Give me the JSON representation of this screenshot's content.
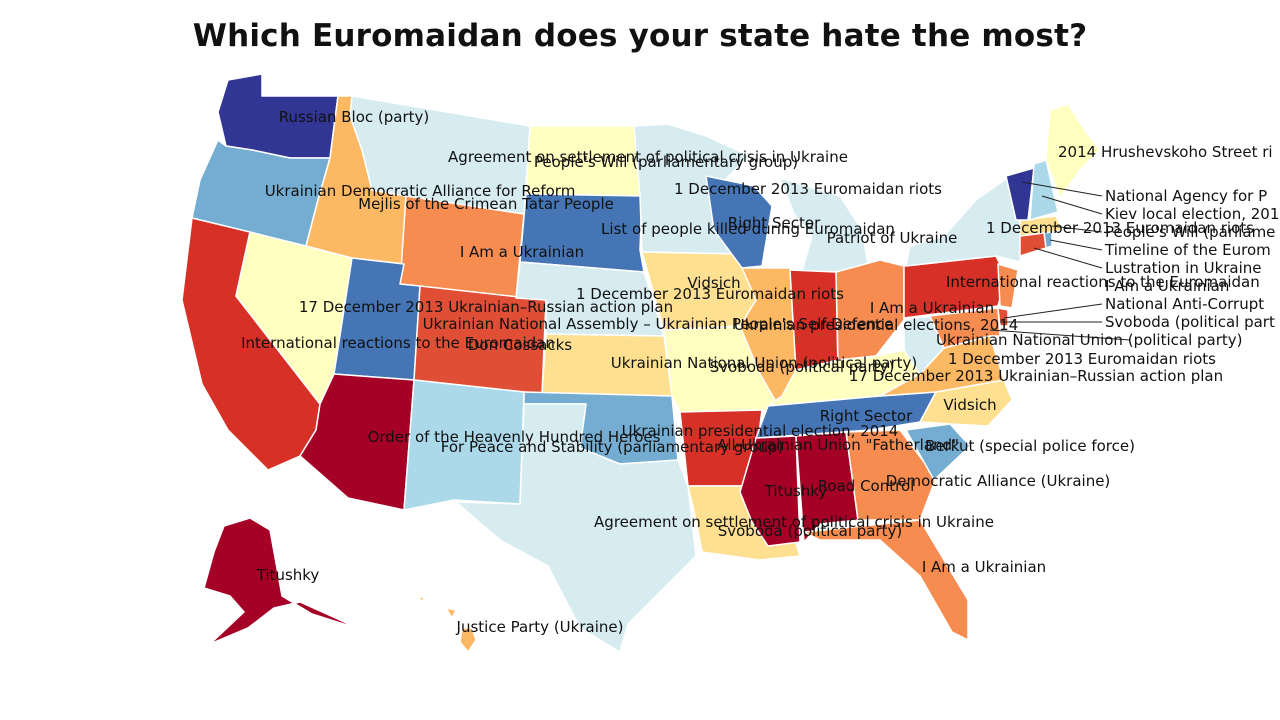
{
  "title": "Which Euromaidan does your state hate the most?",
  "colors": {
    "dark_red": "#a50026",
    "red": "#d73027",
    "orange_red": "#e04e35",
    "orange": "#f68c4f",
    "light_orange": "#fdb863",
    "pale_yellow": "#fee090",
    "cream": "#ffffbf",
    "pale_blue": "#d6ecf1",
    "light_blue": "#abd9e9",
    "blue": "#74add1",
    "mid_blue": "#4575b4",
    "dark_blue": "#313695"
  },
  "labels": {
    "wa": "Russian Bloc (party)",
    "mt": "Agreement on settlement of political crisis in Ukraine",
    "nd": "People's Will (parliamentary group)",
    "me": "2014 Hrushevskoho Street ri",
    "ne_a": "National Agency for P",
    "ne_b": "Kiev local election, 201",
    "ne_c": "People's Will (parliame",
    "ne_d": "Timeline of the Eurom",
    "ne_e": "Lustration in Ukraine",
    "ne_f": "I Am a Ukrainian",
    "ne_g": "National Anti-Corrupt",
    "ne_h": "Svoboda (political part",
    "ne_i": "Ukrainian National Union (political party)",
    "mn": "1 December 2013 Euromaidan riots",
    "or": "Ukrainian Democratic Alliance for Reform",
    "id": "Mejlis of the Crimean Tatar People",
    "wi": "Right Sector",
    "sd": "List of people killed during Euromaidan",
    "mi": "Patriot of Ukraine",
    "ny": "1 December 2013 Euromaidan riots",
    "wy": "I Am a Ukrainian",
    "pa": "International reactions to the Euromaidan",
    "ia": "Vidsich",
    "il": "1 December 2013 Euromaidan riots",
    "oh": "I Am a Ukrainian",
    "ut": "17 December 2013 Ukrainian–Russian action plan",
    "ne": "Ukrainian National Assembly – Ukrainian People's Self-Defence",
    "in": "Ukrainian presidential elections, 2014",
    "nv": "International reactions to the Euromaidan",
    "co": "Don Cossacks",
    "wv": "1 December 2013 Euromaidan riots",
    "ks": "Ukrainian National Union (political party)",
    "mo": "Svoboda (political party)",
    "ky": "17 December 2013 Ukrainian–Russian action plan",
    "va": "Vidsich",
    "tn": "Right Sector",
    "ok": "Ukrainian presidential election, 2014",
    "az": "Order of the Heavenly Hundred Heroes",
    "nm": "For Peace and Stability (parliamentary group)",
    "ar": "All-Ukrainian Union \"Fatherland\"",
    "nc": "Berkut (special police force)",
    "ga": "Democratic Alliance (Ukraine)",
    "al": "Road Control",
    "ms": "Titushky",
    "tx": "Agreement on settlement of political crisis in Ukraine",
    "la": "Svoboda (political party)",
    "fl": "I Am a Ukrainian",
    "ak": "Titushky",
    "hi": "Justice Party (Ukraine)"
  }
}
